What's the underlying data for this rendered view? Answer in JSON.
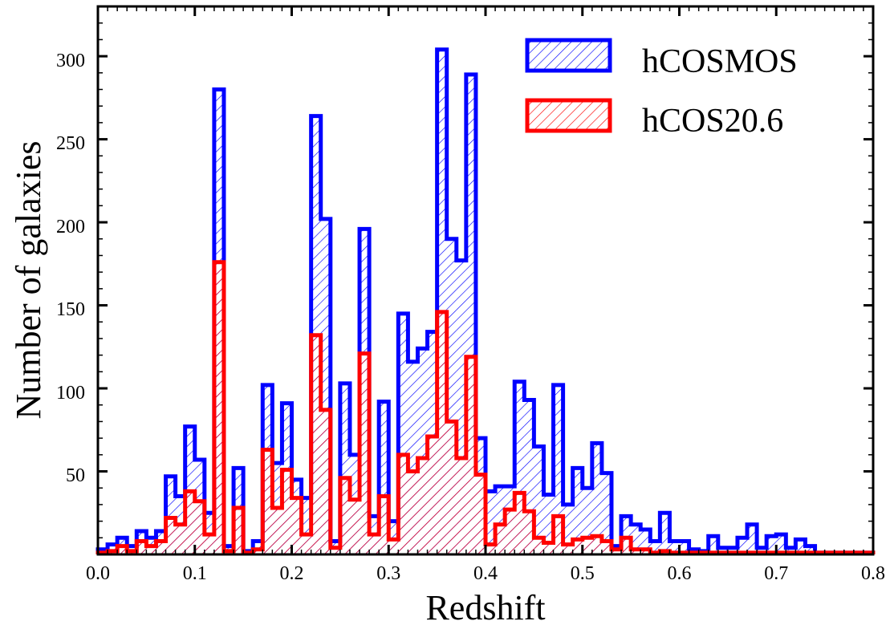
{
  "chart_data": {
    "type": "bar",
    "xlabel": "Redshift",
    "ylabel": "Number of galaxies",
    "xlim": [
      0.0,
      0.8
    ],
    "ylim": [
      0,
      330
    ],
    "bin_width": 0.01,
    "x_ticks": [
      "0.0",
      "0.1",
      "0.2",
      "0.3",
      "0.4",
      "0.5",
      "0.6",
      "0.7",
      "0.8"
    ],
    "y_ticks": [
      "50",
      "100",
      "150",
      "200",
      "250",
      "300"
    ],
    "legend_position": "top-right",
    "series": [
      {
        "name": "hCOSMOS",
        "color": "#0000ff",
        "hatch": "diagonal",
        "values": [
          3,
          6,
          10,
          5,
          14,
          10,
          14,
          47,
          35,
          77,
          57,
          25,
          280,
          5,
          52,
          2,
          8,
          102,
          55,
          91,
          45,
          34,
          264,
          202,
          8,
          103,
          60,
          196,
          23,
          92,
          20,
          145,
          116,
          124,
          134,
          304,
          190,
          177,
          289,
          70,
          38,
          41,
          41,
          104,
          93,
          65,
          36,
          102,
          30,
          52,
          40,
          67,
          49,
          5,
          23,
          18,
          15,
          8,
          25,
          8,
          8,
          3,
          2,
          11,
          4,
          4,
          10,
          18,
          4,
          11,
          12,
          4,
          9,
          5,
          1,
          1,
          1,
          1,
          1,
          1
        ]
      },
      {
        "name": "hCOS20.6",
        "color": "#ff0000",
        "hatch": "diagonal",
        "values": [
          1,
          2,
          5,
          2,
          8,
          5,
          8,
          22,
          18,
          38,
          32,
          12,
          176,
          2,
          28,
          1,
          3,
          63,
          28,
          51,
          34,
          12,
          132,
          87,
          4,
          46,
          33,
          121,
          12,
          35,
          9,
          60,
          50,
          58,
          71,
          146,
          80,
          58,
          119,
          48,
          6,
          18,
          27,
          37,
          26,
          10,
          7,
          23,
          6,
          9,
          10,
          11,
          8,
          3,
          10,
          3,
          3,
          1,
          2,
          1,
          1,
          1,
          1,
          1,
          1,
          1,
          1,
          1,
          1,
          1,
          1,
          1,
          1,
          1,
          1,
          1,
          1,
          1,
          1,
          1
        ]
      }
    ]
  }
}
